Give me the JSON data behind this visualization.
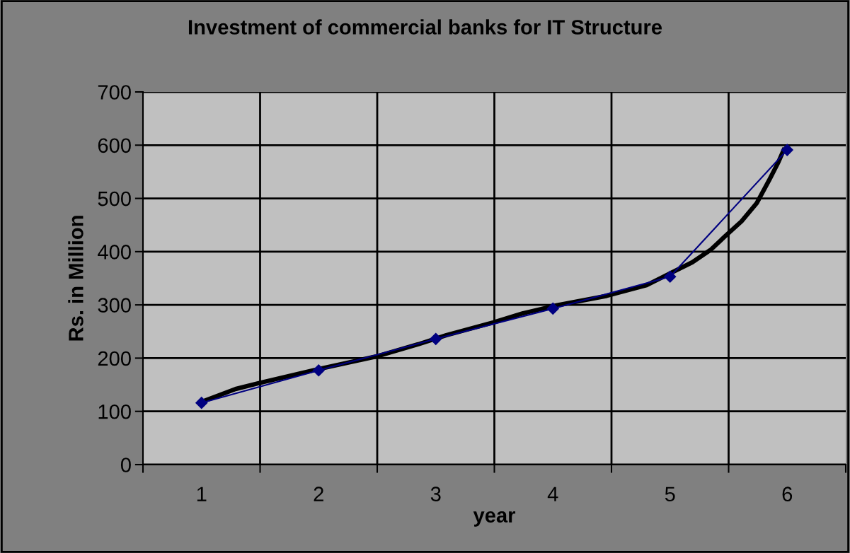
{
  "chart_data": {
    "type": "line",
    "title": "Investment of commercial banks for IT Structure",
    "xlabel": "year",
    "ylabel": "Rs. in Million",
    "x": [
      1,
      2,
      3,
      4,
      5,
      6
    ],
    "xlim": [
      0.5,
      6.5
    ],
    "xticks": [
      1,
      2,
      3,
      4,
      5,
      6
    ],
    "ylim": [
      0,
      700
    ],
    "yticks": [
      0,
      100,
      200,
      300,
      400,
      500,
      600,
      700
    ],
    "grid": true,
    "marker": "diamond",
    "line_style": "solid",
    "series": [
      {
        "color": "#000080",
        "values": [
          116,
          177,
          236,
          293,
          353,
          591
        ]
      },
      {
        "type": "line",
        "marker": "none",
        "color": "#000000",
        "x": [
          0.99,
          1.29,
          1.49,
          1.99,
          2.49,
          2.85,
          3.09,
          3.49,
          3.74,
          4.03,
          4.46,
          4.8,
          4.98,
          5.19,
          5.35,
          5.47,
          5.61,
          5.74,
          5.85,
          5.92,
          5.97
        ],
        "values": [
          117,
          142,
          153,
          179,
          203,
          226,
          243,
          267,
          284,
          299,
          317,
          337,
          357,
          380,
          404,
          429,
          457,
          491,
          536,
          566,
          591
        ]
      }
    ]
  }
}
